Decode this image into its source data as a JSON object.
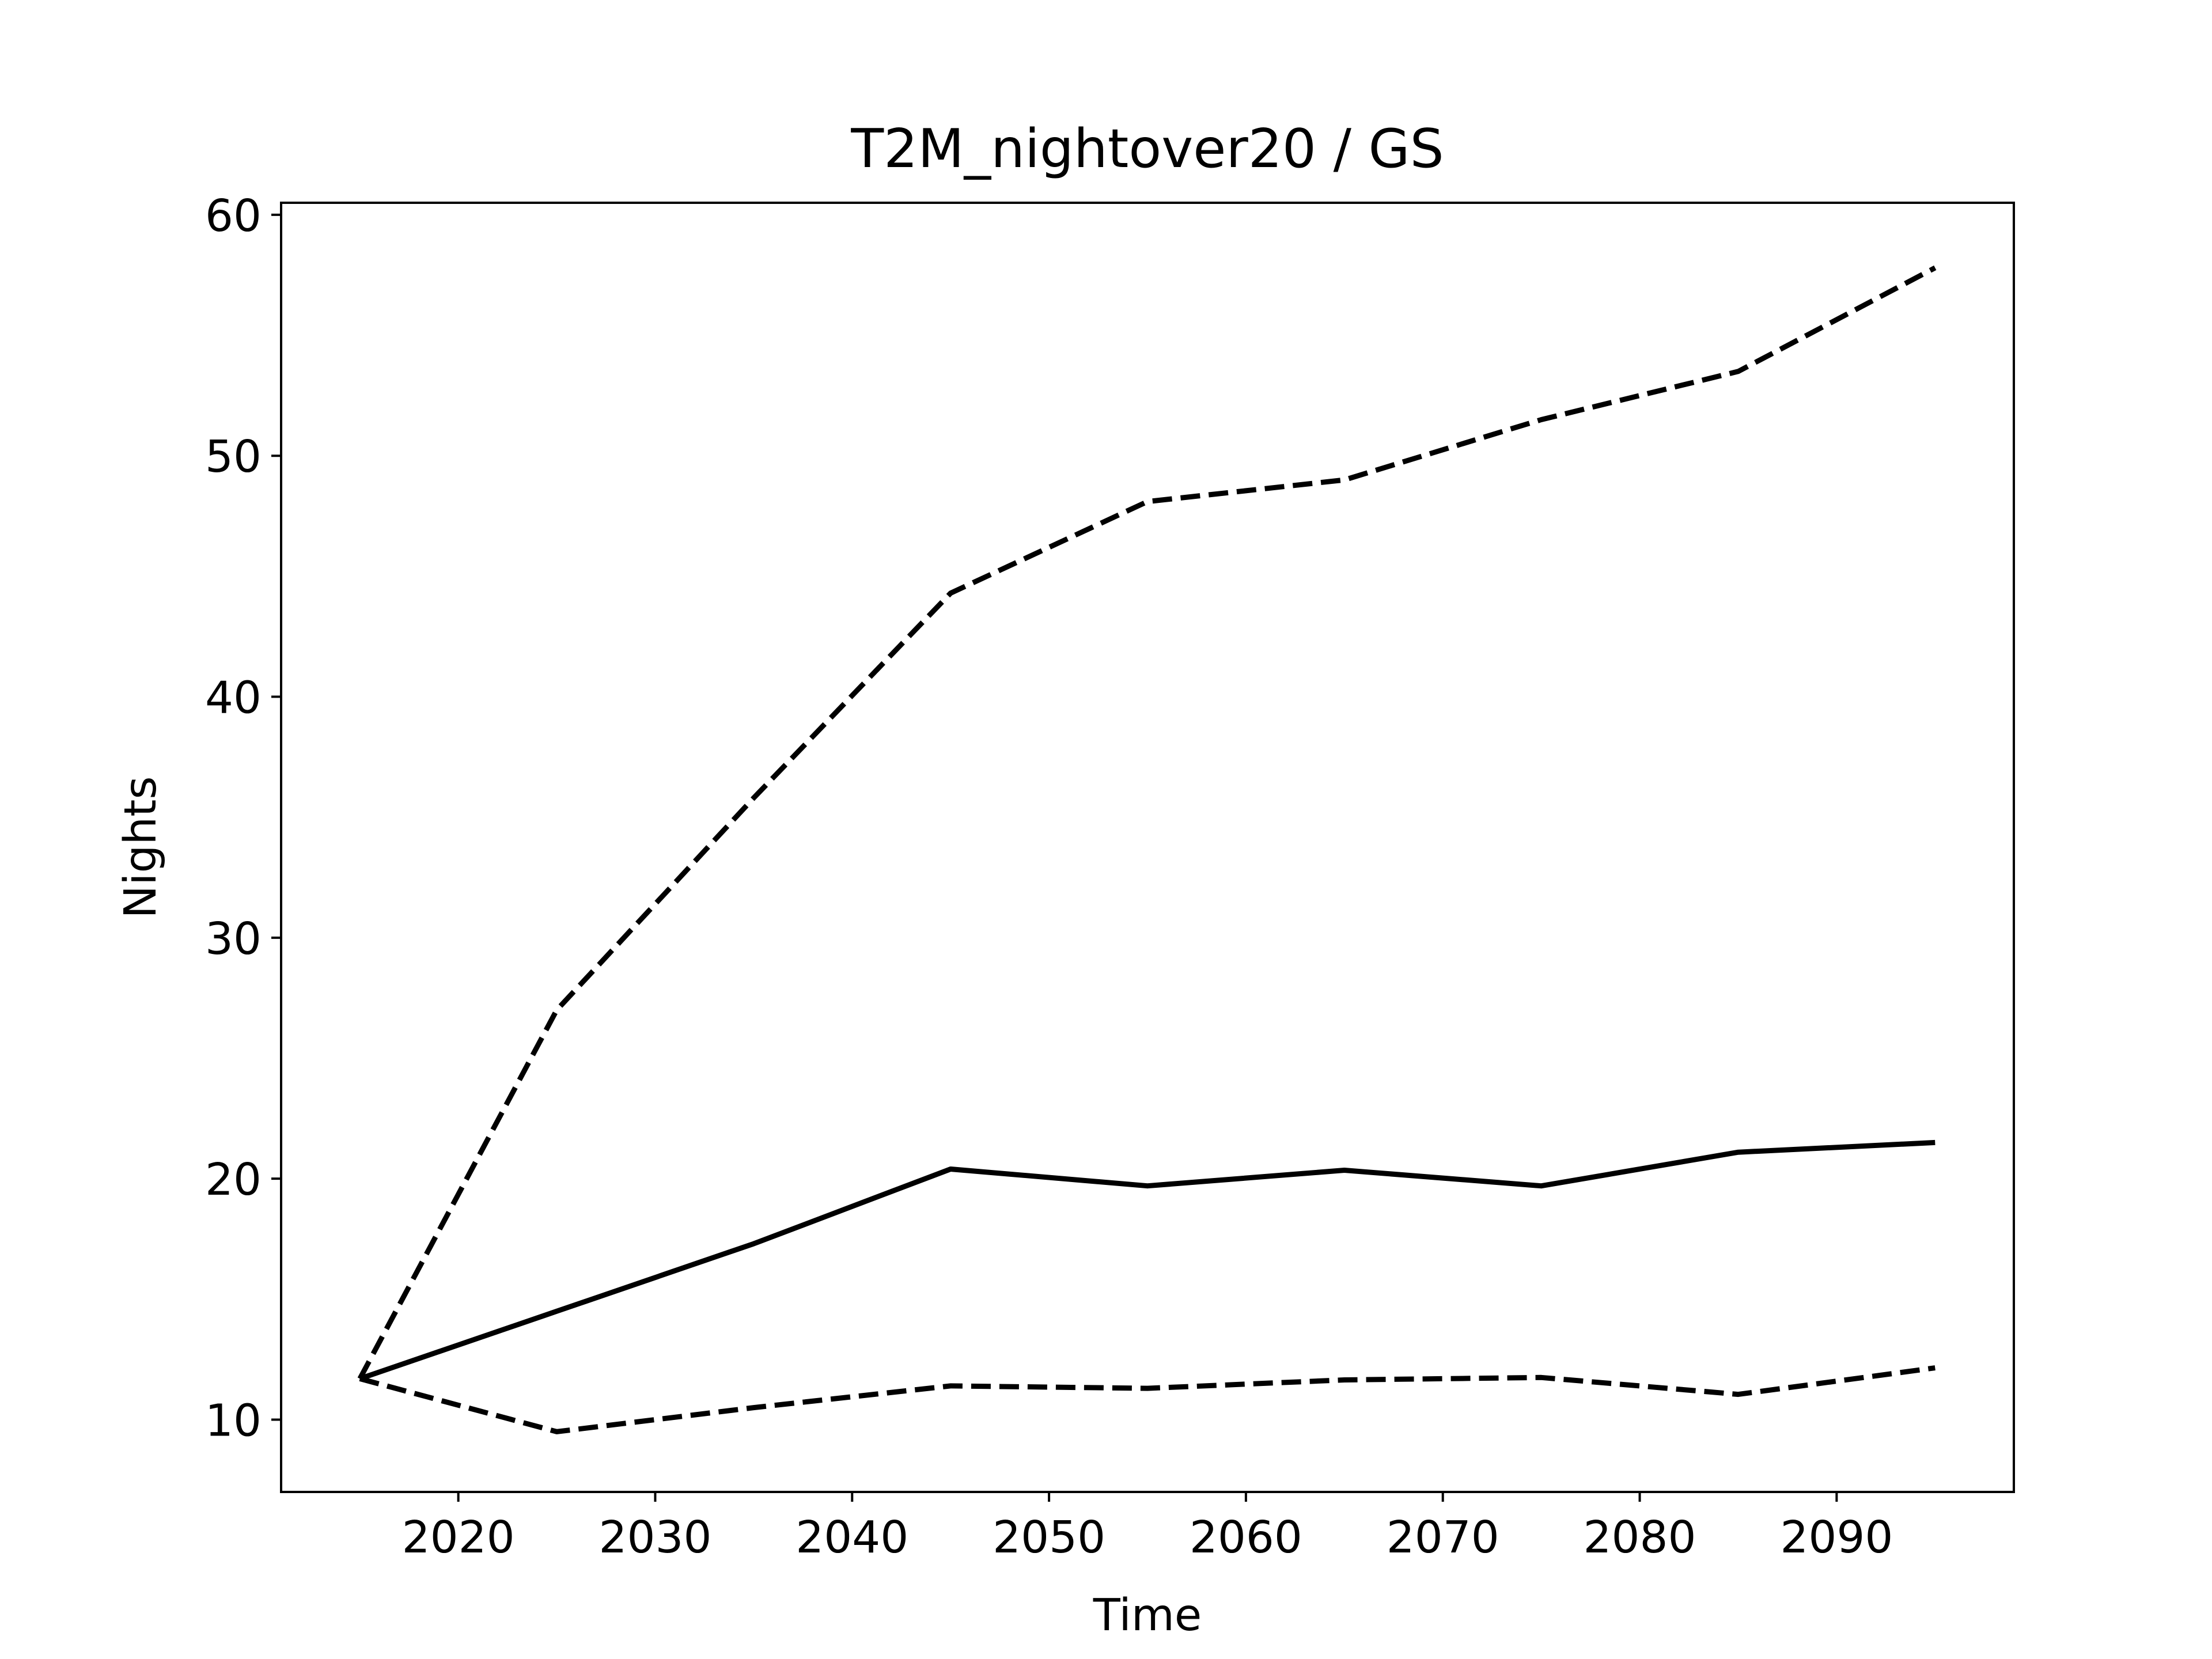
{
  "chart_data": {
    "type": "line",
    "title": "T2M_nightover20 / GS",
    "xlabel": "Time",
    "ylabel": "Nights",
    "xlim": [
      2011,
      2099
    ],
    "ylim": [
      7,
      60.5
    ],
    "xticks": [
      2020,
      2030,
      2040,
      2050,
      2060,
      2070,
      2080,
      2090
    ],
    "yticks": [
      10,
      20,
      30,
      40,
      50,
      60
    ],
    "grid": false,
    "legend": "none",
    "x": [
      2015,
      2025,
      2035,
      2045,
      2055,
      2065,
      2075,
      2085,
      2095
    ],
    "series": [
      {
        "style": "solid",
        "color": "#000000",
        "values": [
          11.7,
          14.5,
          17.3,
          20.4,
          19.7,
          20.35,
          19.7,
          21.1,
          21.5
        ]
      },
      {
        "style": "dashed",
        "color": "#000000",
        "values": [
          11.7,
          27.0,
          35.8,
          44.3,
          48.1,
          49.0,
          51.5,
          53.5,
          57.8
        ]
      },
      {
        "style": "dashed",
        "color": "#000000",
        "values": [
          11.7,
          9.5,
          10.5,
          11.4,
          11.3,
          11.65,
          11.75,
          11.05,
          12.15
        ]
      }
    ]
  }
}
